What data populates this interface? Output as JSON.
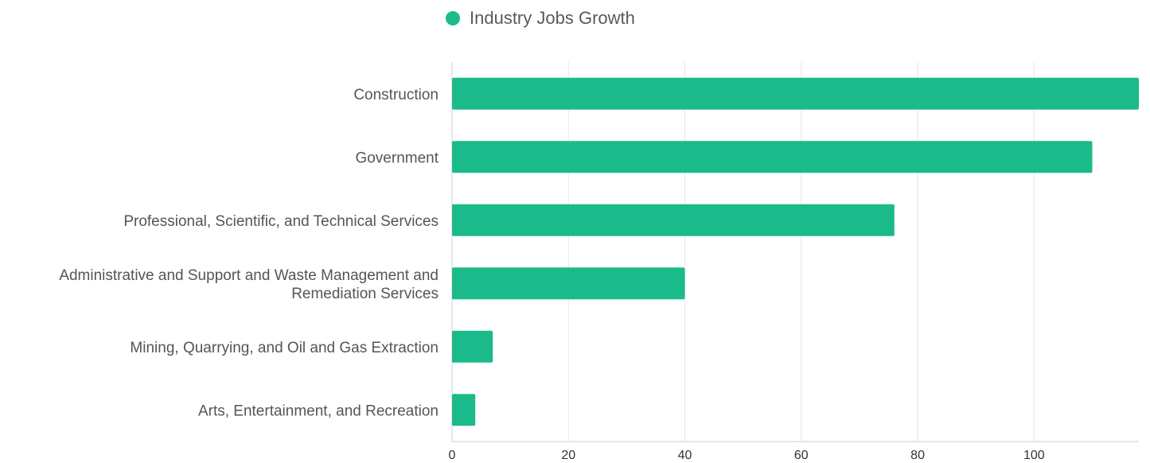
{
  "legend": {
    "label": "Industry Jobs Growth",
    "color": "#1bba8a"
  },
  "chart_data": {
    "type": "bar",
    "orientation": "horizontal",
    "title": "",
    "xlabel": "",
    "ylabel": "",
    "legend_position": "top-center",
    "grid": true,
    "xlim": [
      0,
      118
    ],
    "x_ticks": [
      0,
      20,
      40,
      60,
      80,
      100
    ],
    "categories": [
      [
        "Construction"
      ],
      [
        "Government"
      ],
      [
        "Professional, Scientific, and Technical Services"
      ],
      [
        "Administrative and Support and Waste Management and",
        "Remediation Services"
      ],
      [
        "Mining, Quarrying, and Oil and Gas Extraction"
      ],
      [
        "Arts, Entertainment, and Recreation"
      ]
    ],
    "series": [
      {
        "name": "Industry Jobs Growth",
        "color": "#1bba8a",
        "values": [
          118,
          110,
          76,
          40,
          7,
          4
        ]
      }
    ]
  }
}
